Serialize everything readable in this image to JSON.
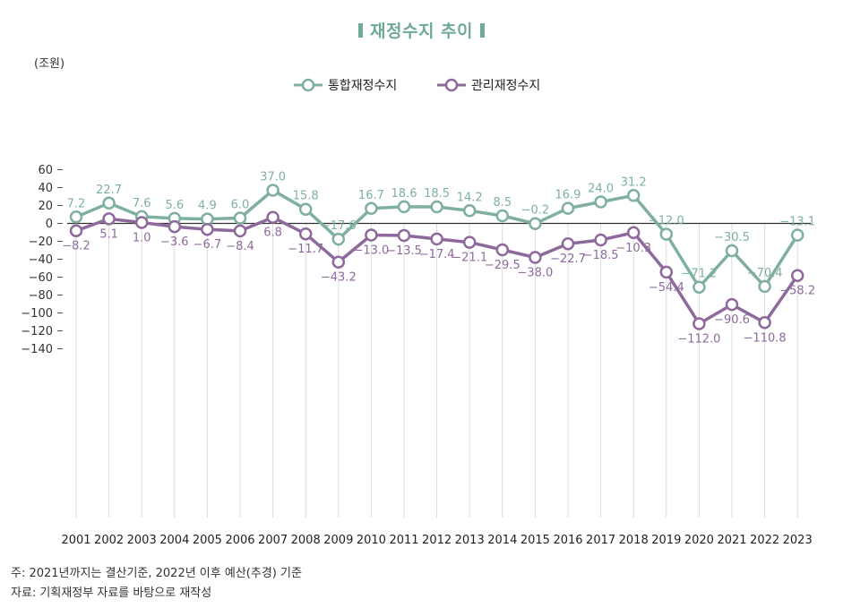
{
  "title": "재정수지 추이",
  "chart_data": {
    "type": "line",
    "unit_label": "(조원)",
    "x": [
      "2001",
      "2002",
      "2003",
      "2004",
      "2005",
      "2006",
      "2007",
      "2008",
      "2009",
      "2010",
      "2011",
      "2012",
      "2013",
      "2014",
      "2015",
      "2016",
      "2017",
      "2018",
      "2019",
      "2020",
      "2021",
      "2022",
      "2023"
    ],
    "yticks": [
      "60",
      "40",
      "20",
      "0",
      "−20",
      "−40",
      "−60",
      "−80",
      "−100",
      "−120",
      "−140"
    ],
    "ylim": [
      -140,
      60
    ],
    "legend_position": "top-center",
    "series": [
      {
        "name": "통합재정수지",
        "color": "#7fb09f",
        "values": [
          7.2,
          22.7,
          7.6,
          5.6,
          4.9,
          6.0,
          37.0,
          15.8,
          -17.6,
          16.7,
          18.6,
          18.5,
          14.2,
          8.5,
          -0.2,
          16.9,
          24.0,
          31.2,
          -12.0,
          -71.2,
          -30.5,
          -70.4,
          -13.1
        ],
        "labels": [
          "7.2",
          "22.7",
          "7.6",
          "5.6",
          "4.9",
          "6.0",
          "37.0",
          "15.8",
          "−17.6",
          "16.7",
          "18.6",
          "18.5",
          "14.2",
          "8.5",
          "−0.2",
          "16.9",
          "24.0",
          "31.2",
          "−12.0",
          "−71.2",
          "−30.5",
          "−70.4",
          "−13.1"
        ]
      },
      {
        "name": "관리재정수지",
        "color": "#8e6a9c",
        "values": [
          -8.2,
          5.1,
          1.0,
          -3.6,
          -6.7,
          -8.4,
          6.8,
          -11.7,
          -43.2,
          -13.0,
          -13.5,
          -17.4,
          -21.1,
          -29.5,
          -38.0,
          -22.7,
          -18.5,
          -10.3,
          -54.4,
          -112.0,
          -90.6,
          -110.8,
          -58.2
        ],
        "labels": [
          "−8.2",
          "5.1",
          "1.0",
          "−3.6",
          "−6.7",
          "−8.4",
          "6.8",
          "−11.7",
          "−43.2",
          "−13.0",
          "−13.5",
          "−17.4",
          "−21.1",
          "−29.5",
          "−38.0",
          "−22.7",
          "−18.5",
          "−10.3",
          "−54.4",
          "−112.0",
          "−90.6",
          "−110.8",
          "−58.2"
        ]
      }
    ]
  },
  "notes": {
    "note1": "주: 2021년까지는 결산기준, 2022년 이후 예산(추경) 기준",
    "note2": "자료: 기획재정부 자료를 바탕으로 재작성"
  }
}
